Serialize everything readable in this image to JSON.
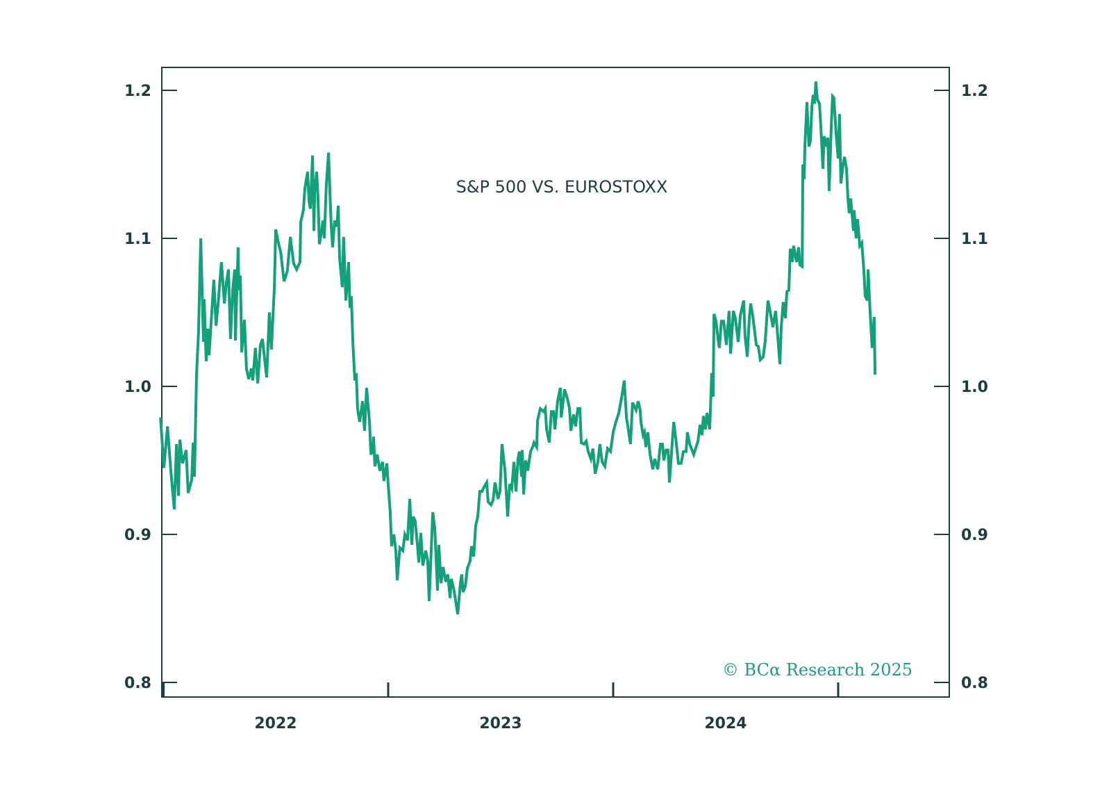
{
  "chart_data": {
    "type": "line",
    "title": "S&P 500 VS. EUROSTOXX",
    "xlabel": "",
    "ylabel": "",
    "credit": "© BCα Research 2025",
    "colors": {
      "line": "#14a07a",
      "axis": "#1d3d40",
      "credit": "#1aa07c"
    },
    "ylim": [
      0.8,
      1.2
    ],
    "yticks": [
      0.8,
      0.9,
      1.0,
      1.1,
      1.2
    ],
    "ytick_labels": [
      "0.8",
      "0.9",
      "1.0",
      "1.1",
      "1.2"
    ],
    "y_axes": [
      "left",
      "right"
    ],
    "xlim": [
      2021.988,
      2025.425
    ],
    "xticks": [
      2022.0,
      2023.0,
      2024.0,
      2025.0
    ],
    "xtick_labels": [
      {
        "label": "2022",
        "at": 2022.5
      },
      {
        "label": "2023",
        "at": 2023.5
      },
      {
        "label": "2024",
        "at": 2024.5
      }
    ],
    "grid": false,
    "legend": "none",
    "series": [
      {
        "name": "S&P 500 vs. EuroStoxx",
        "x": [
          2021.988,
          2022.003,
          2022.019,
          2022.034,
          2022.049,
          2022.059,
          2022.068,
          2022.074,
          2022.086,
          2022.102,
          2022.111,
          2022.127,
          2022.133,
          2022.139,
          2022.148,
          2022.157,
          2022.167,
          2022.179,
          2022.182,
          2022.191,
          2022.198,
          2022.204,
          2022.225,
          2022.235,
          2022.244,
          2022.259,
          2022.272,
          2022.281,
          2022.29,
          2022.299,
          2022.309,
          2022.318,
          2022.321,
          2022.333,
          2022.336,
          2022.343,
          2022.349,
          2022.361,
          2022.37,
          2022.38,
          2022.392,
          2022.398,
          2022.41,
          2022.42,
          2022.432,
          2022.441,
          2022.46,
          2022.472,
          2022.481,
          2022.494,
          2022.5,
          2022.512,
          2022.522,
          2022.537,
          2022.552,
          2022.565,
          2022.58,
          2022.593,
          2022.608,
          2022.611,
          2022.623,
          2022.63,
          2022.642,
          2022.648,
          2022.654,
          2022.664,
          2022.67,
          2022.673,
          2022.682,
          2022.688,
          2022.694,
          2022.704,
          2022.71,
          2022.716,
          2022.725,
          2022.735,
          2022.741,
          2022.747,
          2022.753,
          2022.762,
          2022.772,
          2022.778,
          2022.784,
          2022.796,
          2022.802,
          2022.812,
          2022.824,
          2022.83,
          2022.836,
          2022.843,
          2022.852,
          2022.858,
          2022.864,
          2022.873,
          2022.886,
          2022.895,
          2022.904,
          2022.917,
          2022.923,
          2022.932,
          2022.935,
          2022.941,
          2022.951,
          2022.963,
          2022.975,
          2022.981,
          2022.994,
          2023.0,
          2023.009,
          2023.015,
          2023.025,
          2023.034,
          2023.04,
          2023.052,
          2023.065,
          2023.074,
          2023.086,
          2023.096,
          2023.105,
          2023.111,
          2023.12,
          2023.13,
          2023.136,
          2023.145,
          2023.154,
          2023.167,
          2023.176,
          2023.182,
          2023.198,
          2023.207,
          2023.219,
          2023.225,
          2023.235,
          2023.244,
          2023.256,
          2023.265,
          2023.275,
          2023.281,
          2023.293,
          2023.309,
          2023.321,
          2023.327,
          2023.333,
          2023.343,
          2023.352,
          2023.364,
          2023.37,
          2023.38,
          2023.389,
          2023.398,
          2023.407,
          2023.417,
          2023.426,
          2023.438,
          2023.444,
          2023.457,
          2023.466,
          2023.475,
          2023.488,
          2023.497,
          2023.506,
          2023.519,
          2023.531,
          2023.54,
          2023.549,
          2023.559,
          2023.568,
          2023.577,
          2023.583,
          2023.593,
          2023.596,
          2023.602,
          2023.611,
          2023.62,
          2023.633,
          2023.642,
          2023.648,
          2023.66,
          2023.664,
          2023.676,
          2023.691,
          2023.698,
          2023.704,
          2023.716,
          2023.725,
          2023.735,
          2023.741,
          2023.753,
          2023.765,
          2023.769,
          2023.784,
          2023.796,
          2023.806,
          2023.812,
          2023.824,
          2023.833,
          2023.843,
          2023.852,
          2023.858,
          2023.87,
          2023.88,
          2023.889,
          2023.901,
          2023.91,
          2023.92,
          2023.932,
          2023.941,
          2023.951,
          2023.963,
          2023.975,
          2023.988,
          2024.0,
          2024.012,
          2024.025,
          2024.037,
          2024.049,
          2024.059,
          2024.065,
          2024.077,
          2024.086,
          2024.102,
          2024.111,
          2024.12,
          2024.123,
          2024.133,
          2024.139,
          2024.145,
          2024.154,
          2024.164,
          2024.176,
          2024.185,
          2024.198,
          2024.21,
          2024.219,
          2024.225,
          2024.235,
          2024.244,
          2024.25,
          2024.262,
          2024.269,
          2024.278,
          2024.29,
          2024.302,
          2024.312,
          2024.324,
          2024.33,
          2024.34,
          2024.358,
          2024.377,
          2024.386,
          2024.395,
          2024.401,
          2024.41,
          2024.417,
          2024.429,
          2024.438,
          2024.444,
          2024.448,
          2024.457,
          2024.466,
          2024.472,
          2024.481,
          2024.491,
          2024.503,
          2024.515,
          2024.522,
          2024.534,
          2024.543,
          2024.556,
          2024.565,
          2024.58,
          2024.586,
          2024.596,
          2024.605,
          2024.611,
          2024.62,
          2024.636,
          2024.645,
          2024.654,
          2024.667,
          2024.676,
          2024.688,
          2024.701,
          2024.71,
          2024.722,
          2024.728,
          2024.741,
          2024.747,
          2024.756,
          2024.765,
          2024.772,
          2024.781,
          2024.787,
          2024.796,
          2024.802,
          2024.815,
          2024.824,
          2024.83,
          2024.84,
          2024.843,
          2024.849,
          2024.852,
          2024.861,
          2024.87,
          2024.877,
          2024.883,
          2024.889,
          2024.895,
          2024.901,
          2024.907,
          2024.917,
          2024.923,
          2024.932,
          2024.938,
          2024.948,
          2024.954,
          2024.96,
          2024.969,
          2024.975,
          2024.981,
          2024.991,
          2025.0,
          2025.006,
          2025.012,
          2025.022,
          2025.028,
          2025.037,
          2025.043,
          2025.049,
          2025.056,
          2025.068,
          2025.071,
          2025.08,
          2025.086,
          2025.096,
          2025.105,
          2025.114,
          2025.12,
          2025.13,
          2025.133,
          2025.142,
          2025.151,
          2025.16,
          2025.164
        ],
        "values": [
          0.979,
          0.945,
          0.973,
          0.943,
          0.917,
          0.961,
          0.926,
          0.964,
          0.948,
          0.957,
          0.928,
          0.937,
          0.962,
          0.939,
          1.008,
          1.037,
          1.1,
          1.03,
          1.059,
          1.017,
          1.039,
          1.021,
          1.072,
          1.041,
          1.056,
          1.084,
          1.056,
          1.07,
          1.079,
          1.032,
          1.065,
          1.079,
          1.031,
          1.094,
          1.065,
          1.075,
          1.023,
          1.045,
          1.012,
          1.005,
          1.012,
          1.004,
          1.026,
          1.002,
          1.028,
          1.032,
          1.006,
          1.05,
          1.025,
          1.067,
          1.106,
          1.097,
          1.091,
          1.071,
          1.078,
          1.101,
          1.083,
          1.079,
          1.084,
          1.111,
          1.119,
          1.134,
          1.145,
          1.125,
          1.12,
          1.156,
          1.105,
          1.131,
          1.145,
          1.128,
          1.096,
          1.105,
          1.112,
          1.1,
          1.136,
          1.158,
          1.131,
          1.108,
          1.094,
          1.112,
          1.108,
          1.122,
          1.087,
          1.067,
          1.101,
          1.058,
          1.084,
          1.053,
          1.061,
          1.03,
          1.004,
          1.009,
          0.985,
          0.976,
          0.99,
          0.97,
          0.999,
          0.976,
          0.954,
          0.957,
          0.966,
          0.946,
          0.954,
          0.943,
          0.949,
          0.936,
          0.948,
          0.934,
          0.915,
          0.892,
          0.9,
          0.889,
          0.869,
          0.891,
          0.889,
          0.9,
          0.896,
          0.924,
          0.893,
          0.912,
          0.909,
          0.893,
          0.881,
          0.901,
          0.879,
          0.889,
          0.882,
          0.855,
          0.915,
          0.904,
          0.862,
          0.893,
          0.867,
          0.878,
          0.868,
          0.873,
          0.857,
          0.87,
          0.862,
          0.846,
          0.867,
          0.873,
          0.861,
          0.865,
          0.877,
          0.882,
          0.892,
          0.885,
          0.906,
          0.912,
          0.929,
          0.929,
          0.932,
          0.935,
          0.922,
          0.92,
          0.923,
          0.935,
          0.924,
          0.929,
          0.961,
          0.943,
          0.912,
          0.934,
          0.931,
          0.949,
          0.929,
          0.951,
          0.956,
          0.939,
          0.957,
          0.927,
          0.95,
          0.943,
          0.956,
          0.959,
          0.962,
          0.959,
          0.977,
          0.985,
          0.983,
          0.985,
          0.971,
          0.962,
          0.983,
          0.983,
          0.971,
          0.99,
          0.999,
          0.979,
          0.998,
          0.992,
          0.985,
          0.97,
          0.981,
          0.973,
          0.985,
          0.985,
          0.962,
          0.961,
          0.963,
          0.956,
          0.951,
          0.958,
          0.941,
          0.949,
          0.961,
          0.949,
          0.946,
          0.958,
          0.956,
          0.969,
          0.976,
          0.982,
          0.992,
          1.004,
          0.979,
          0.973,
          0.961,
          0.989,
          0.984,
          0.99,
          0.984,
          0.976,
          0.967,
          0.969,
          0.959,
          0.969,
          0.954,
          0.944,
          0.951,
          0.944,
          0.961,
          0.961,
          0.95,
          0.957,
          0.957,
          0.935,
          0.961,
          0.976,
          0.965,
          0.948,
          0.948,
          0.956,
          0.956,
          0.969,
          0.961,
          0.954,
          0.963,
          0.974,
          0.967,
          0.98,
          0.971,
          0.982,
          0.971,
          1.009,
          0.993,
          1.049,
          1.044,
          1.032,
          1.026,
          1.044,
          1.044,
          1.028,
          1.051,
          1.022,
          1.051,
          1.046,
          1.03,
          1.048,
          1.058,
          1.034,
          1.02,
          1.046,
          1.056,
          1.048,
          1.028,
          1.027,
          1.018,
          1.02,
          1.031,
          1.058,
          1.048,
          1.04,
          1.051,
          1.04,
          1.015,
          1.04,
          1.057,
          1.046,
          1.064,
          1.065,
          1.093,
          1.084,
          1.095,
          1.084,
          1.094,
          1.082,
          1.081,
          1.15,
          1.14,
          1.162,
          1.192,
          1.162,
          1.166,
          1.189,
          1.197,
          1.191,
          1.206,
          1.194,
          1.191,
          1.175,
          1.147,
          1.169,
          1.162,
          1.168,
          1.132,
          1.175,
          1.196,
          1.195,
          1.17,
          1.154,
          1.184,
          1.137,
          1.15,
          1.155,
          1.147,
          1.128,
          1.117,
          1.127,
          1.105,
          1.119,
          1.1,
          1.113,
          1.095,
          1.097,
          1.079,
          1.061,
          1.058,
          1.079,
          1.05,
          1.026,
          1.047,
          1.008
        ]
      }
    ]
  }
}
